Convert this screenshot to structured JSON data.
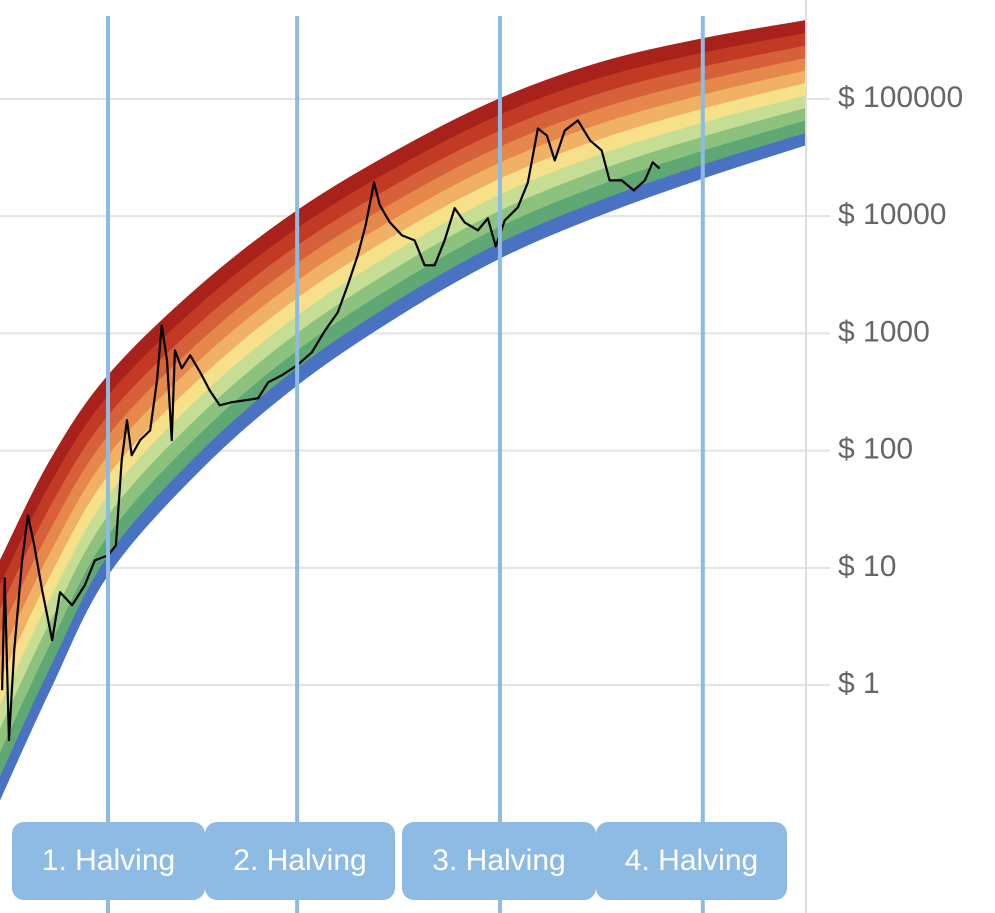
{
  "chart_data": {
    "type": "line",
    "log_scale_y": true,
    "grid": true,
    "xlim": [
      2010.86,
      2026.14
    ],
    "ylim": [
      0.0114,
      698000
    ],
    "yticks": [
      {
        "value": 1,
        "label": "$ 1"
      },
      {
        "value": 10,
        "label": "$ 10"
      },
      {
        "value": 100,
        "label": "$ 100"
      },
      {
        "value": 1000,
        "label": "$ 1000"
      },
      {
        "value": 10000,
        "label": "$ 10000"
      },
      {
        "value": 100000,
        "label": "$ 100000"
      }
    ],
    "rainbow": {
      "colors": [
        "#4a72c2",
        "#5fa874",
        "#8cc27e",
        "#c6dd94",
        "#f6e08a",
        "#f1b164",
        "#e6874c",
        "#d6603a",
        "#c23a24",
        "#a8221b"
      ],
      "x": [
        2010.86,
        2011.81,
        2012.91,
        2014.66,
        2016.5,
        2018.45,
        2020.35,
        2022.25,
        2024.2,
        2026.14
      ],
      "lower": [
        0.105,
        0.906,
        8.67,
        68.1,
        361,
        1427,
        4370,
        10160,
        21000,
        40200
      ],
      "upper": [
        11.6,
        82.8,
        440,
        2570,
        11200,
        37800,
        101000,
        205000,
        328000,
        467000
      ]
    },
    "series": [
      {
        "color": "#000000",
        "x": [
          2010.9,
          2010.95,
          2011.03,
          2011.13,
          2011.28,
          2011.39,
          2011.51,
          2011.66,
          2011.85,
          2012.0,
          2012.23,
          2012.47,
          2012.66,
          2012.91,
          2013.06,
          2013.17,
          2013.27,
          2013.36,
          2013.52,
          2013.71,
          2013.84,
          2013.93,
          2014.03,
          2014.12,
          2014.18,
          2014.31,
          2014.47,
          2014.66,
          2014.84,
          2015.03,
          2015.26,
          2015.51,
          2015.76,
          2015.95,
          2016.21,
          2016.5,
          2016.78,
          2017.03,
          2017.27,
          2017.46,
          2017.65,
          2017.8,
          2017.96,
          2018.07,
          2018.26,
          2018.49,
          2018.73,
          2018.92,
          2019.11,
          2019.3,
          2019.49,
          2019.68,
          2019.93,
          2020.12,
          2020.27,
          2020.44,
          2020.69,
          2020.88,
          2021.07,
          2021.24,
          2021.39,
          2021.58,
          2021.83,
          2022.06,
          2022.28,
          2022.43,
          2022.66,
          2022.89,
          2023.1,
          2023.25,
          2023.38
        ],
        "values": [
          0.906,
          8.17,
          0.34,
          1.99,
          11.6,
          28.1,
          15.6,
          6.46,
          2.42,
          6.21,
          4.81,
          7.12,
          11.6,
          12.8,
          15.6,
          82.8,
          182,
          91.4,
          123,
          149,
          398,
          1170,
          590,
          123,
          718,
          504,
          650,
          466,
          327,
          244,
          259,
          269,
          280,
          383,
          440,
          535,
          690,
          1060,
          1510,
          2570,
          4630,
          8350,
          19400,
          12400,
          8850,
          6860,
          6220,
          3810,
          3810,
          6220,
          11700,
          8850,
          7570,
          9580,
          5530,
          9200,
          11900,
          19400,
          56000,
          48800,
          29900,
          53800,
          65600,
          44300,
          36400,
          20200,
          20200,
          16600,
          20200,
          28800,
          25500
        ]
      }
    ],
    "halvings": [
      {
        "label": "1. Halving",
        "x": 2012.91
      },
      {
        "label": "2. Halving",
        "x": 2016.5
      },
      {
        "label": "3. Halving",
        "x": 2020.35
      },
      {
        "label": "4. Halving",
        "x": 2024.2
      }
    ]
  }
}
